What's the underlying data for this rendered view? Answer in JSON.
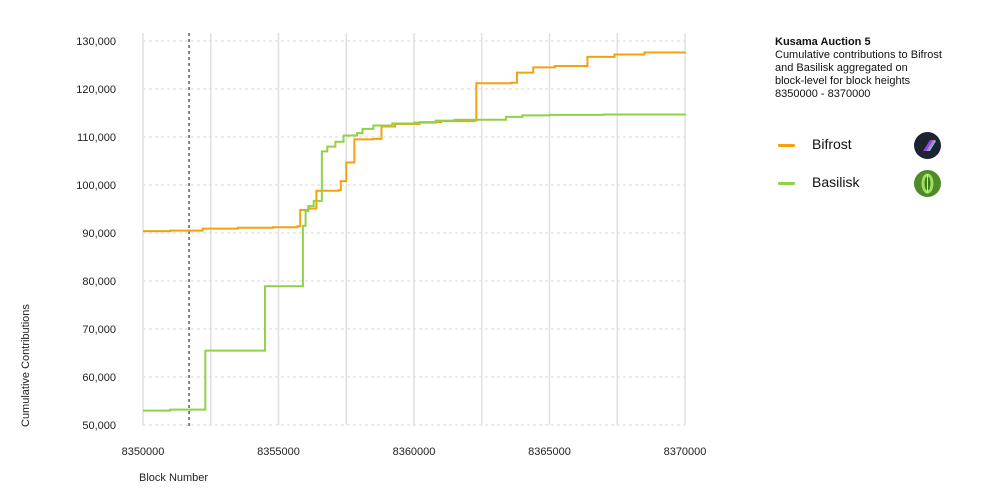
{
  "chart_data": {
    "type": "line",
    "step": true,
    "title": "Kusama Auction 5",
    "subtitle_lines": [
      "Cumulative contributions to Bifrost",
      "and Basilisk aggregated on",
      "block-level for block heights",
      "8350000 - 8370000"
    ],
    "xlabel": "Block Number",
    "ylabel": "Cumulative Contributions",
    "xlim": [
      8350000,
      8370000
    ],
    "ylim": [
      50000,
      130000
    ],
    "x_ticks": [
      8350000,
      8355000,
      8360000,
      8365000,
      8370000
    ],
    "x_tick_labels": [
      "8350000",
      "8355000",
      "8360000",
      "8365000",
      "8370000"
    ],
    "y_ticks": [
      50000,
      60000,
      70000,
      80000,
      90000,
      100000,
      110000,
      120000,
      130000
    ],
    "y_tick_labels": [
      "50,000",
      "60,000",
      "70,000",
      "80,000",
      "90,000",
      "100,000",
      "110,000",
      "120,000",
      "130,000"
    ],
    "vertical_gridlines": [
      8352500,
      8357500,
      8362500,
      8367500
    ],
    "reference_line_x": 8351700,
    "grid": true,
    "legend_position": "top-right",
    "series": [
      {
        "name": "Bifrost",
        "color": "#f5a10f",
        "icon": "bifrost-logo-icon",
        "points": [
          [
            8350000,
            90400
          ],
          [
            8351000,
            90500
          ],
          [
            8352200,
            90900
          ],
          [
            8353500,
            91100
          ],
          [
            8354800,
            91200
          ],
          [
            8355700,
            91400
          ],
          [
            8355800,
            94800
          ],
          [
            8356100,
            95100
          ],
          [
            8356400,
            98800
          ],
          [
            8357200,
            98900
          ],
          [
            8357300,
            100800
          ],
          [
            8357500,
            104700
          ],
          [
            8357800,
            109500
          ],
          [
            8358500,
            109600
          ],
          [
            8358800,
            112200
          ],
          [
            8359300,
            112700
          ],
          [
            8360200,
            113100
          ],
          [
            8361000,
            113300
          ],
          [
            8362200,
            113400
          ],
          [
            8362300,
            121200
          ],
          [
            8363600,
            121300
          ],
          [
            8363800,
            123400
          ],
          [
            8364400,
            124500
          ],
          [
            8365200,
            124800
          ],
          [
            8366400,
            126700
          ],
          [
            8367400,
            127200
          ],
          [
            8368500,
            127600
          ],
          [
            8370000,
            127700
          ]
        ]
      },
      {
        "name": "Basilisk",
        "color": "#8fd147",
        "icon": "basilisk-logo-icon",
        "points": [
          [
            8350000,
            53000
          ],
          [
            8351000,
            53200
          ],
          [
            8352300,
            65500
          ],
          [
            8354500,
            78900
          ],
          [
            8355900,
            91500
          ],
          [
            8356000,
            94600
          ],
          [
            8356100,
            95600
          ],
          [
            8356300,
            96700
          ],
          [
            8356600,
            107000
          ],
          [
            8356800,
            108000
          ],
          [
            8357100,
            109000
          ],
          [
            8357400,
            110300
          ],
          [
            8357900,
            110800
          ],
          [
            8358100,
            111700
          ],
          [
            8358500,
            112400
          ],
          [
            8359200,
            112800
          ],
          [
            8360000,
            113000
          ],
          [
            8360800,
            113400
          ],
          [
            8361500,
            113600
          ],
          [
            8363400,
            114200
          ],
          [
            8364000,
            114500
          ],
          [
            8365000,
            114600
          ],
          [
            8367000,
            114700
          ],
          [
            8370000,
            114800
          ]
        ]
      }
    ]
  }
}
